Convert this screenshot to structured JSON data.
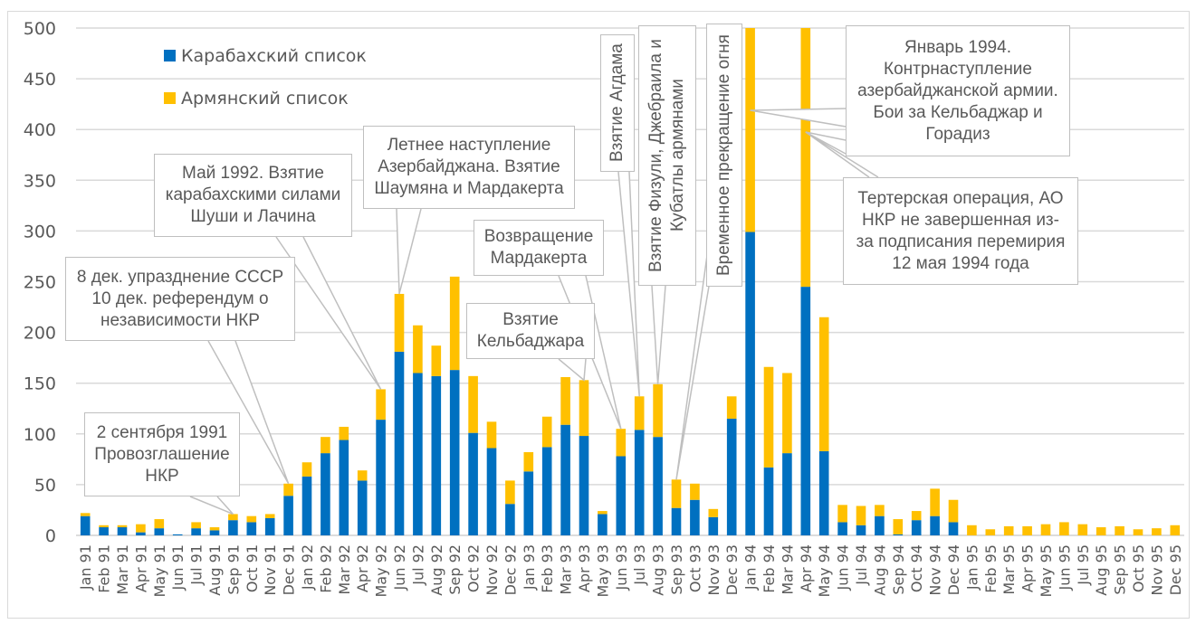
{
  "chart_data": {
    "type": "bar",
    "stacked": true,
    "title": "",
    "xlabel": "",
    "ylabel": "",
    "ylim": [
      0,
      500
    ],
    "yticks": [
      0,
      50,
      100,
      150,
      200,
      250,
      300,
      350,
      400,
      450,
      500
    ],
    "grid": true,
    "legend_position": "top-left",
    "categories": [
      "Jan 91",
      "Feb 91",
      "Mar 91",
      "Apr 91",
      "May 91",
      "Jun 91",
      "Jul 91",
      "Aug 91",
      "Sep 91",
      "Oct 91",
      "Nov 91",
      "Dec 91",
      "Jan 92",
      "Feb 92",
      "Mar 92",
      "Apr 92",
      "May 92",
      "Jun 92",
      "Jul 92",
      "Aug 92",
      "Sep 92",
      "Oct 92",
      "Nov 92",
      "Dec 92",
      "Jan 93",
      "Feb 93",
      "Mar 93",
      "Apr 93",
      "May 93",
      "Jun 93",
      "Jul 93",
      "Aug 93",
      "Sep 93",
      "Oct 93",
      "Nov 93",
      "Dec 93",
      "Jan 94",
      "Feb 94",
      "Mar 94",
      "Apr 94",
      "May 94",
      "Jun 94",
      "Jul 94",
      "Aug 94",
      "Sep 94",
      "Oct 94",
      "Nov 94",
      "Dec 94",
      "Jan 95",
      "Feb 95",
      "Mar 95",
      "Apr 95",
      "May 95",
      "Jun 95",
      "Jul 95",
      "Aug 95",
      "Sep 95",
      "Oct 95",
      "Nov 95",
      "Dec 95"
    ],
    "series": [
      {
        "name": "Карабахский список",
        "color": "#0070c0",
        "values": [
          19,
          8,
          8,
          3,
          7,
          1,
          7,
          5,
          15,
          13,
          17,
          39,
          58,
          81,
          94,
          54,
          114,
          181,
          160,
          157,
          163,
          101,
          86,
          31,
          63,
          87,
          109,
          98,
          21,
          78,
          104,
          97,
          27,
          35,
          18,
          115,
          299,
          67,
          81,
          245,
          83,
          13,
          10,
          19,
          1,
          15,
          19,
          13,
          0,
          0,
          0,
          0,
          0,
          0,
          0,
          0,
          0,
          0,
          0,
          0
        ]
      },
      {
        "name": "Армянский список",
        "color": "#ffc000",
        "values": [
          3,
          2,
          2,
          8,
          9,
          0,
          6,
          3,
          6,
          6,
          4,
          12,
          14,
          16,
          13,
          10,
          30,
          57,
          47,
          30,
          92,
          56,
          26,
          23,
          19,
          30,
          47,
          55,
          3,
          27,
          33,
          52,
          28,
          16,
          8,
          22,
          201,
          99,
          79,
          255,
          132,
          17,
          19,
          11,
          15,
          9,
          27,
          22,
          10,
          6,
          9,
          9,
          11,
          13,
          11,
          8,
          9,
          6,
          7,
          10
        ]
      }
    ],
    "annotations": [
      {
        "text": "2 сентября 1991\nПровозглашение\nНКР",
        "target": "Sep 91"
      },
      {
        "text": "8 дек. упразднение СССР\n10 дек. референдум о\nнезависимости НКР",
        "target": "Dec 91"
      },
      {
        "text": "Май 1992. Взятие\nкарабахскими силами\nШуши и Лачина",
        "target": "May 92"
      },
      {
        "text": "Летнее наступление\nАзербайджана. Взятие\nШаумяна и Мардакерта",
        "target": "Jun 92"
      },
      {
        "text": "Возвращение\nМардакерта",
        "target": "Jun 93"
      },
      {
        "text": "Взятие\nКельбаджара",
        "target": "Apr 93"
      },
      {
        "text": "Взятие  Агдама",
        "target": "Jul 93"
      },
      {
        "text": "Взятие Физули, Джебраила и\nКубатлы армянами",
        "target": "Aug 93"
      },
      {
        "text": "Временное прекращение огня",
        "target": "Sep 93"
      },
      {
        "text": "Январь 1994.\nКонтрнаступление\nазербайджанской армии.\nБои за Кельбаджар и\nГорадиз",
        "target": "Jan 94"
      },
      {
        "text": "Тертерская операция, АО\nНКР не завершенная из-\nза подписания перемирия\n12 мая 1994 года",
        "target": "Apr 94"
      }
    ]
  }
}
